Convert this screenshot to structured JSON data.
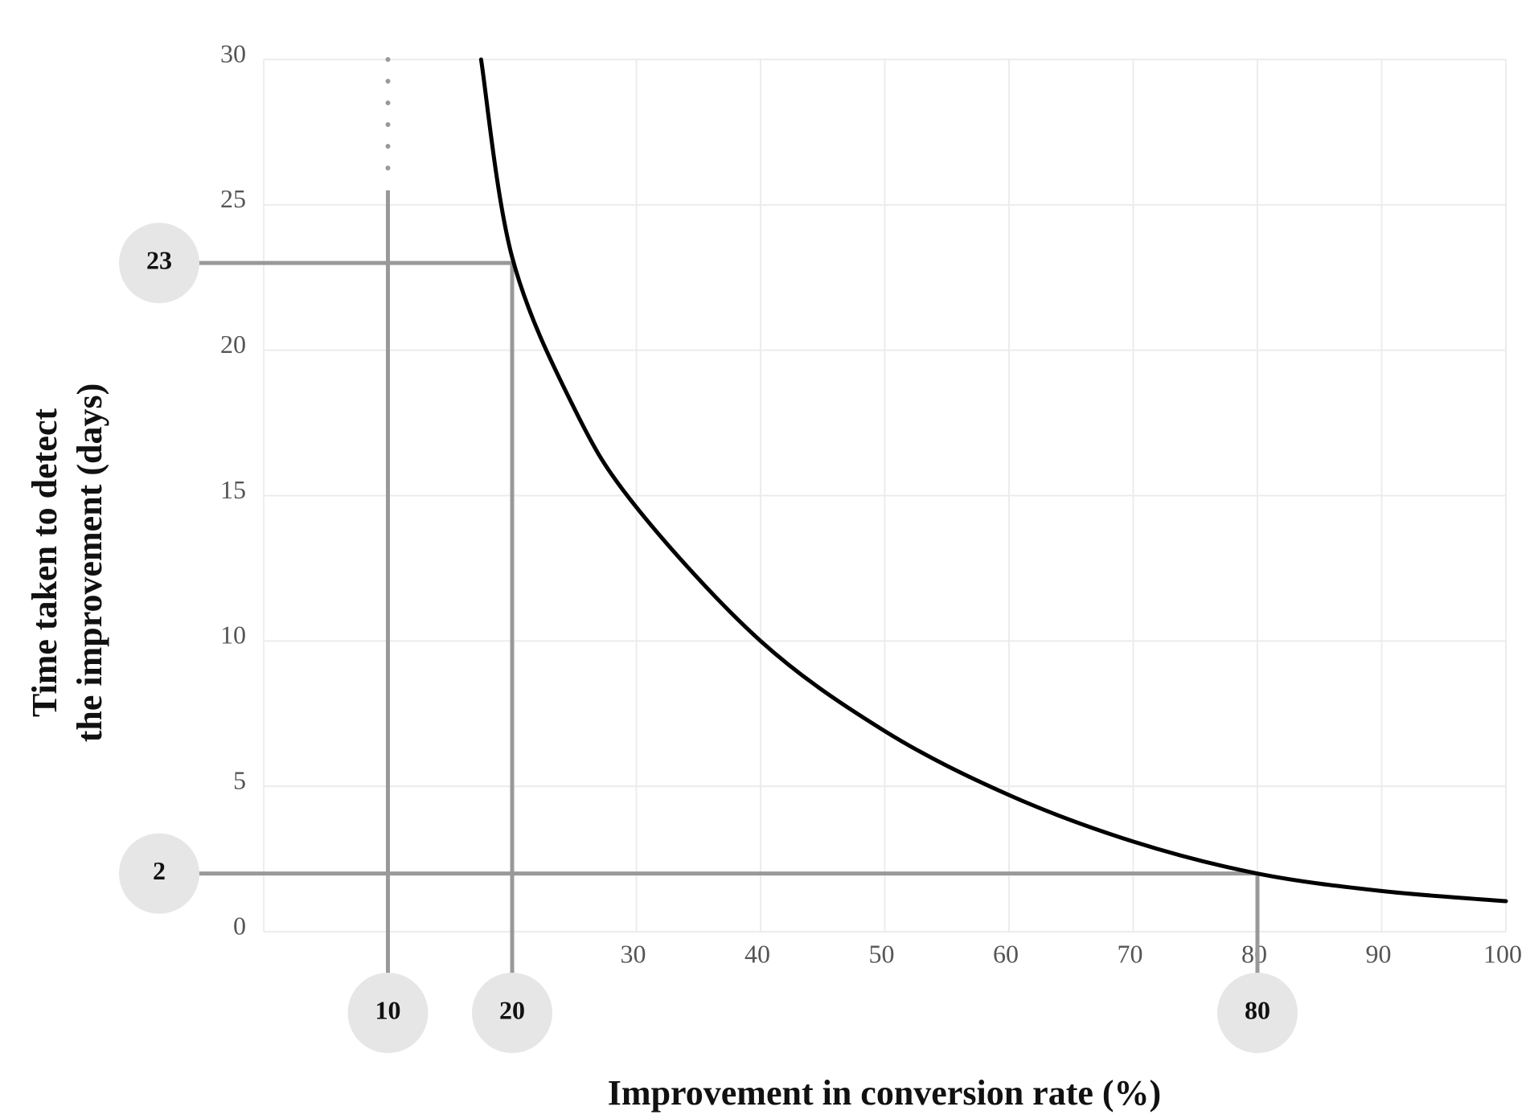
{
  "chart_data": {
    "type": "line",
    "xlabel": "Improvement in conversion rate (%)",
    "ylabel": [
      "Time taken to detect",
      "the improvement (days)"
    ],
    "x": [
      17.5,
      20,
      25,
      30,
      40,
      50,
      60,
      70,
      80,
      90,
      100
    ],
    "series": [
      {
        "color": "#000000",
        "values": [
          30,
          23.2,
          18,
          14.6,
          10,
          6.9,
          4.7,
          3.1,
          2,
          1.4,
          1.05
        ]
      }
    ],
    "xlim": [
      0,
      100
    ],
    "xticks": [
      30,
      40,
      50,
      60,
      70,
      80,
      90,
      100
    ],
    "ylim": [
      0,
      30
    ],
    "yticks": [
      0,
      5,
      10,
      15,
      20,
      25,
      30
    ],
    "grid": true,
    "guides": [
      {
        "x": 10
      },
      {
        "x": 20,
        "y": 23
      },
      {
        "x": 80,
        "y": 2
      }
    ],
    "guide_color": "#999999"
  }
}
